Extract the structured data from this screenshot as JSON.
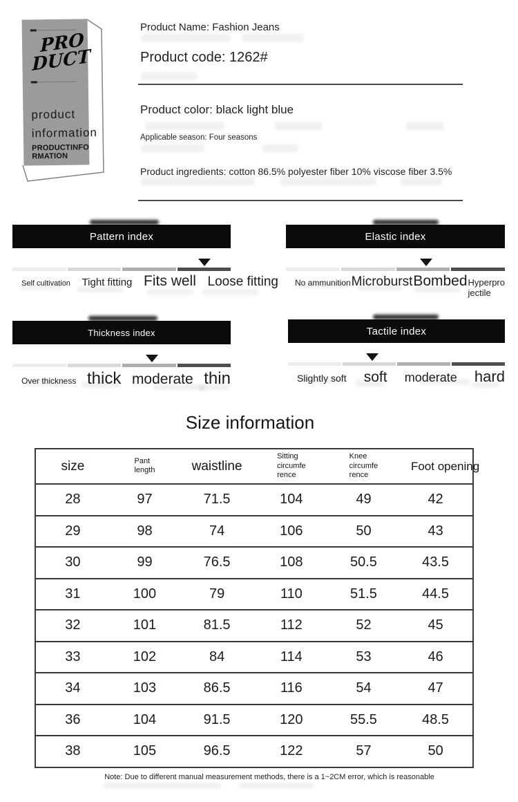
{
  "product_box": {
    "script_line1": "PRO",
    "script_line2": "DUCT",
    "word1": "product",
    "word2": "information",
    "caps": "PRODUCTINFO\nRMATION"
  },
  "details": {
    "name": "Product Name: Fashion Jeans",
    "code": "Product code: 1262#",
    "color": "Product color: black light blue",
    "season": "Applicable season: Four seasons",
    "ingredients": "Product ingredients: cotton 86.5% polyester fiber 10% viscose fiber 3.5%"
  },
  "indexes": [
    {
      "title": "Pattern index",
      "labels": [
        "Self cultivation",
        "Tight fitting",
        "Fits well",
        "Loose fitting"
      ],
      "arrow_percent": 88
    },
    {
      "title": "Elastic index",
      "labels": [
        "No ammunition",
        "Microburst",
        "Bombed",
        "Hyperpro\njectile"
      ],
      "arrow_percent": 64
    },
    {
      "title": "Thickness index",
      "labels": [
        "Over thickness",
        "thick",
        "moderate",
        "thin"
      ],
      "arrow_percent": 64
    },
    {
      "title": "Tactile index",
      "labels": [
        "Slightly soft",
        "soft",
        "moderate",
        "hard"
      ],
      "arrow_percent": 39
    }
  ],
  "size_table": {
    "title": "Size information",
    "headers": [
      "size",
      "Pant\nlength",
      "waistline",
      "Sitting\ncircumfe\nrence",
      "Knee\ncircumfe\nrence",
      "Foot opening"
    ],
    "rows": [
      [
        "28",
        "97",
        "71.5",
        "104",
        "49",
        "42"
      ],
      [
        "29",
        "98",
        "74",
        "106",
        "50",
        "43"
      ],
      [
        "30",
        "99",
        "76.5",
        "108",
        "50.5",
        "43.5"
      ],
      [
        "31",
        "100",
        "79",
        "110",
        "51.5",
        "44.5"
      ],
      [
        "32",
        "101",
        "81.5",
        "112",
        "52",
        "45"
      ],
      [
        "33",
        "102",
        "84",
        "114",
        "53",
        "46"
      ],
      [
        "34",
        "103",
        "86.5",
        "116",
        "54",
        "47"
      ],
      [
        "36",
        "104",
        "91.5",
        "120",
        "55.5",
        "48.5"
      ],
      [
        "38",
        "105",
        "96.5",
        "122",
        "57",
        "50"
      ]
    ]
  },
  "note": "Note: Due to different manual measurement methods, there is a 1~2CM error, which is reasonable",
  "colors": {
    "header_bar": "#0b0b0b",
    "scale_segments": [
      "#ededed",
      "#d8d8d8",
      "#aeaeae",
      "#4e4e4e"
    ],
    "table_border": "#3a3a3a"
  }
}
